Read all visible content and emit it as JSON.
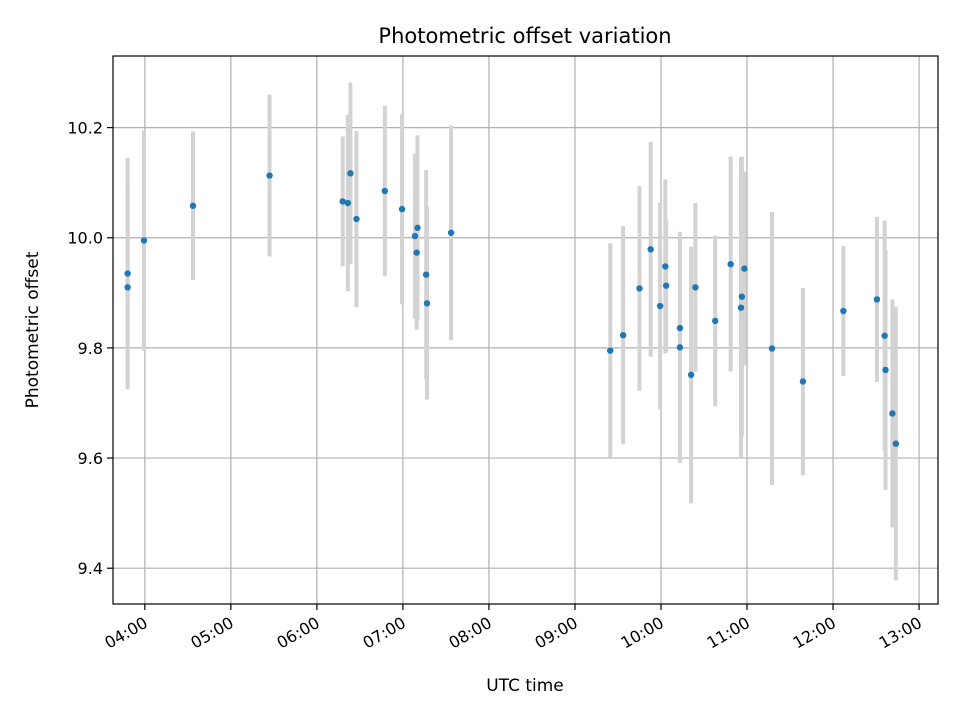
{
  "chart_data": {
    "type": "scatter",
    "title": "Photometric offset variation",
    "xlabel": "UTC time",
    "ylabel": "Photometric offset",
    "grid": true,
    "xlim": [
      3.63,
      13.22
    ],
    "ylim": [
      9.335,
      10.33
    ],
    "x_ticks": [
      4,
      5,
      6,
      7,
      8,
      9,
      10,
      11,
      12,
      13
    ],
    "x_tick_labels": [
      "04:00",
      "05:00",
      "06:00",
      "07:00",
      "08:00",
      "09:00",
      "10:00",
      "11:00",
      "12:00",
      "13:00"
    ],
    "y_ticks": [
      9.4,
      9.6,
      9.8,
      10.0,
      10.2
    ],
    "y_tick_labels": [
      "9.4",
      "9.6",
      "9.8",
      "10.0",
      "10.2"
    ],
    "colors": {
      "marker": "#1f77b4",
      "errorbar": "#d3d3d3",
      "grid": "#b0b0b0"
    },
    "series": [
      {
        "name": "Photometric offset",
        "x": [
          3.8,
          3.8,
          3.99,
          4.56,
          5.45,
          6.3,
          6.36,
          6.39,
          6.46,
          6.79,
          6.99,
          7.14,
          7.16,
          7.17,
          7.27,
          7.28,
          7.56,
          9.41,
          9.56,
          9.75,
          9.88,
          9.99,
          10.05,
          10.06,
          10.22,
          10.22,
          10.35,
          10.4,
          10.63,
          10.81,
          10.93,
          10.94,
          10.97,
          11.29,
          11.65,
          12.12,
          12.51,
          12.6,
          12.61,
          12.69,
          12.73
        ],
        "y": [
          9.935,
          9.91,
          9.995,
          10.058,
          10.113,
          10.066,
          10.063,
          10.117,
          10.034,
          10.085,
          10.052,
          10.003,
          9.973,
          10.018,
          9.933,
          9.881,
          10.009,
          9.795,
          9.823,
          9.908,
          9.979,
          9.876,
          9.948,
          9.913,
          9.836,
          9.801,
          9.751,
          9.91,
          9.849,
          9.952,
          9.873,
          9.893,
          9.944,
          9.799,
          9.739,
          9.867,
          9.888,
          9.822,
          9.76,
          9.681,
          9.626
        ],
        "yerr": [
          0.21,
          0.18,
          0.2,
          0.135,
          0.147,
          0.118,
          0.16,
          0.165,
          0.16,
          0.155,
          0.173,
          0.15,
          0.14,
          0.168,
          0.19,
          0.175,
          0.195,
          0.195,
          0.198,
          0.186,
          0.195,
          0.187,
          0.158,
          0.12,
          0.135,
          0.21,
          0.233,
          0.153,
          0.155,
          0.195,
          0.273,
          0.254,
          0.176,
          0.248,
          0.17,
          0.118,
          0.15,
          0.209,
          0.218,
          0.207,
          0.248
        ]
      }
    ]
  }
}
